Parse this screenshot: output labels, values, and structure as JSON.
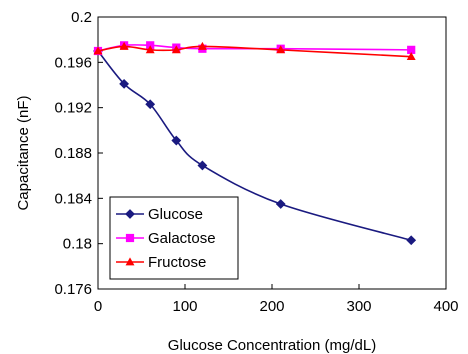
{
  "chart_data": {
    "type": "line",
    "title": "",
    "xlabel": "Glucose Concentration (mg/dL)",
    "ylabel": "Capacitance (nF)",
    "xlim": [
      0,
      400
    ],
    "ylim": [
      0.176,
      0.2
    ],
    "xticks": [
      "0",
      "100",
      "200",
      "300",
      "400"
    ],
    "yticks": [
      "0.176",
      "0.18",
      "0.184",
      "0.188",
      "0.192",
      "0.196",
      "0.2"
    ],
    "grid": false,
    "legend_position": "bottom-left",
    "series": [
      {
        "name": "Glucose",
        "color": "#1a1a80",
        "marker": "diamond",
        "x": [
          0,
          30,
          60,
          90,
          120,
          210,
          360
        ],
        "y": [
          0.197,
          0.1941,
          0.1923,
          0.1891,
          0.1869,
          0.1835,
          0.1803
        ]
      },
      {
        "name": "Galactose",
        "color": "#ff00ff",
        "marker": "square",
        "x": [
          0,
          30,
          60,
          90,
          120,
          210,
          360
        ],
        "y": [
          0.197,
          0.1975,
          0.1975,
          0.1973,
          0.1972,
          0.1972,
          0.1971
        ]
      },
      {
        "name": "Fructose",
        "color": "#ff0000",
        "marker": "triangle",
        "x": [
          0,
          30,
          60,
          90,
          120,
          210,
          360
        ],
        "y": [
          0.197,
          0.1974,
          0.1971,
          0.1971,
          0.1974,
          0.1971,
          0.1965
        ]
      }
    ]
  }
}
